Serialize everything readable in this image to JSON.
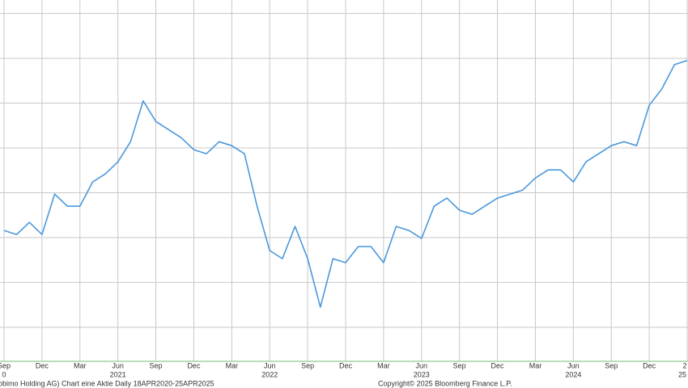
{
  "chart_data": {
    "type": "line",
    "color": "#4a98dc",
    "grid": true,
    "x": [
      "2020-09",
      "2020-10",
      "2020-11",
      "2020-12",
      "2021-01",
      "2021-02",
      "2021-03",
      "2021-04",
      "2021-05",
      "2021-06",
      "2021-07",
      "2021-08",
      "2021-09",
      "2021-10",
      "2021-11",
      "2021-12",
      "2022-01",
      "2022-02",
      "2022-03",
      "2022-04",
      "2022-05",
      "2022-06",
      "2022-07",
      "2022-08",
      "2022-09",
      "2022-10",
      "2022-11",
      "2022-12",
      "2023-01",
      "2023-02",
      "2023-03",
      "2023-04",
      "2023-05",
      "2023-06",
      "2023-07",
      "2023-08",
      "2023-09",
      "2023-10",
      "2023-11",
      "2023-12",
      "2024-01",
      "2024-02",
      "2024-03",
      "2024-04",
      "2024-05",
      "2024-06",
      "2024-07",
      "2024-08",
      "2024-09",
      "2024-10",
      "2024-11",
      "2024-12",
      "2025-01",
      "2025-02",
      "2025-03"
    ],
    "values": [
      3.16,
      3.07,
      3.34,
      3.07,
      3.97,
      3.7,
      3.7,
      4.24,
      4.42,
      4.69,
      5.14,
      6.05,
      5.59,
      5.41,
      5.23,
      4.96,
      4.87,
      5.14,
      5.05,
      4.87,
      3.7,
      2.71,
      2.53,
      3.25,
      2.53,
      1.45,
      2.53,
      2.44,
      2.8,
      2.8,
      2.44,
      3.25,
      3.16,
      2.98,
      3.7,
      3.88,
      3.61,
      3.52,
      3.7,
      3.88,
      3.97,
      4.06,
      4.33,
      4.51,
      4.51,
      4.24,
      4.69,
      4.87,
      5.05,
      5.14,
      5.05,
      5.95,
      6.32,
      6.86,
      6.95
    ],
    "ylim": [
      0.24,
      8.3
    ],
    "ygrid": [
      1,
      2,
      3,
      4,
      5,
      6,
      7,
      8
    ],
    "xticks": [
      {
        "value": "2020-09",
        "label": "Sep"
      },
      {
        "value": "2020-12",
        "label": "Dec"
      },
      {
        "value": "2021-03",
        "label": "Mar"
      },
      {
        "value": "2021-06",
        "label": "Jun"
      },
      {
        "value": "2021-09",
        "label": "Sep"
      },
      {
        "value": "2021-12",
        "label": "Dec"
      },
      {
        "value": "2022-03",
        "label": "Mar"
      },
      {
        "value": "2022-06",
        "label": "Jun"
      },
      {
        "value": "2022-09",
        "label": "Sep"
      },
      {
        "value": "2022-12",
        "label": "Dec"
      },
      {
        "value": "2023-03",
        "label": "Mar"
      },
      {
        "value": "2023-06",
        "label": "Jun"
      },
      {
        "value": "2023-09",
        "label": "Sep"
      },
      {
        "value": "2023-12",
        "label": "Dec"
      },
      {
        "value": "2024-03",
        "label": "Mar"
      },
      {
        "value": "2024-06",
        "label": "Jun"
      },
      {
        "value": "2024-09",
        "label": "Sep"
      },
      {
        "value": "2024-12",
        "label": "Dec"
      },
      {
        "value": "2025-03",
        "label": "2"
      }
    ],
    "xyears": [
      {
        "value": "2020-09",
        "label": "0"
      },
      {
        "value": "2021-06",
        "label": "2021"
      },
      {
        "value": "2022-06",
        "label": "2022"
      },
      {
        "value": "2023-06",
        "label": "2023"
      },
      {
        "value": "2024-06",
        "label": "2024"
      },
      {
        "value": "2025-03",
        "label": "25"
      }
    ],
    "footer_left": "obimo Holding AG) Chart eine Aktie  Daily 18APR2020-25APR2025",
    "footer_center": "Copyright© 2025 Bloomberg Finance L.P."
  }
}
